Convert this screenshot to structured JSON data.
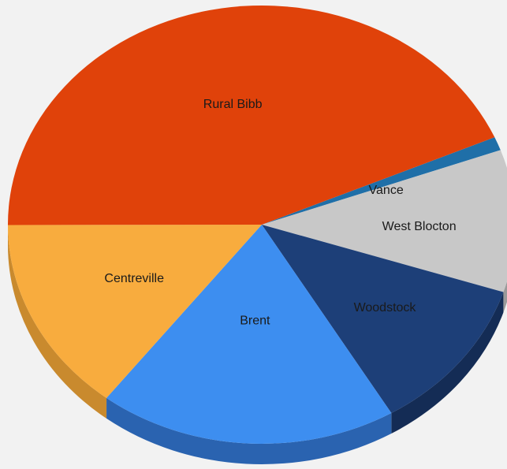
{
  "chart_data": {
    "type": "pie",
    "style": "3d",
    "title": "",
    "legend": "none",
    "slices": [
      {
        "label": "Vance",
        "value": 1.0,
        "color": "#1f6fa8",
        "side": "#174f78"
      },
      {
        "label": "West Blocton",
        "value": 10.5,
        "color": "#c8c8c8",
        "side": "#9a9a9a"
      },
      {
        "label": "Woodstock",
        "value": 11.5,
        "color": "#1d3f78",
        "side": "#142c55"
      },
      {
        "label": "Brent",
        "value": 19.0,
        "color": "#3d8ef0",
        "side": "#2a63b0"
      },
      {
        "label": "Centreville",
        "value": 14.5,
        "color": "#f8ac3e",
        "side": "#c98a2e"
      },
      {
        "label": "Rural Bibb",
        "value": 43.5,
        "color": "#e0420a",
        "side": "#a02f06"
      }
    ]
  }
}
